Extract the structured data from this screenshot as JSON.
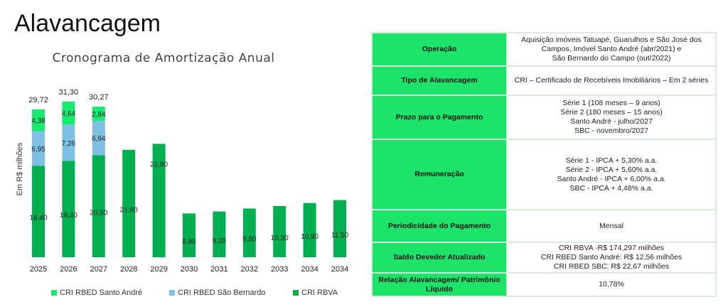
{
  "title": "Alavancagem",
  "chart_data": {
    "type": "bar",
    "stacked": true,
    "title": "Cronograma de Amortização Anual",
    "ylabel": "Em R$ milhões",
    "xlabel": "",
    "categories": [
      "2025",
      "2026",
      "2027",
      "2028",
      "2029",
      "2030",
      "2031",
      "2032",
      "2033",
      "2034",
      "2034"
    ],
    "series": [
      {
        "name": "CRI RBVA",
        "color": "#00b050",
        "values": [
          18.4,
          19.4,
          20.5,
          21.6,
          22.8,
          8.8,
          9.2,
          9.8,
          10.3,
          10.9,
          11.5
        ],
        "labels": [
          "18,40",
          "19,40",
          "20,50",
          "21,60",
          "22,80",
          "8,80",
          "9,20",
          "9,80",
          "10,30",
          "10,90",
          "11,50"
        ]
      },
      {
        "name": "CRI RBED São Bernardo",
        "color": "#7cc0e4",
        "values": [
          6.95,
          7.26,
          6.94,
          0,
          0,
          0,
          0,
          0,
          0,
          0,
          0
        ],
        "labels": [
          "6,95",
          "7,26",
          "6,94",
          "",
          "",
          "",
          "",
          "",
          "",
          "",
          ""
        ]
      },
      {
        "name": "CRI RBED Santo André",
        "color": "#17ea6e",
        "values": [
          4.38,
          4.64,
          2.84,
          0,
          0,
          0,
          0,
          0,
          0,
          0,
          0
        ],
        "labels": [
          "4,38",
          "4,64",
          "2,84",
          "",
          "",
          "",
          "",
          "",
          "",
          "",
          ""
        ]
      }
    ],
    "totals": [
      "29,72",
      "31,30",
      "30,27",
      "",
      "",
      "",
      "",
      "",
      "",
      "",
      ""
    ],
    "legend": [
      "CRI RBED Santo André",
      "CRI RBED São Bernardo",
      "CRI RBVA"
    ],
    "legend_placement": "bottom",
    "grid": false
  },
  "table": {
    "rows": [
      {
        "key": "Operação",
        "value": [
          "Aquisição imóveis Tatuapé, Guarulhos e São José dos",
          "Campos, Imóvel Santo André (abr/2021) e",
          "São Bernardo do Campo (out/2022)"
        ]
      },
      {
        "key": "Tipo de Alavancagem",
        "value": [
          "CRI – Certificado de Recebíveis Imobiliários – Em 2 séries"
        ]
      },
      {
        "key": "Prazo para o Pagamento",
        "value": [
          "Série 1 (108 meses – 9 anos)",
          "Série 2 (180 meses – 15 anos)",
          "Santo André - julho/2027",
          "SBC - novembro/2027"
        ]
      },
      {
        "key": "Remuneração",
        "value": [
          "Série 1 - IPCA + 5,30% a.a.",
          "Série 2 - IPCA + 5,60% a.a.",
          "Santo André - IPCA + 6,00% a.a.",
          "SBC - IPCA + 4,48% a.a."
        ]
      },
      {
        "key": "Periodicidade do Pagamento",
        "value": [
          "Mensal"
        ]
      },
      {
        "key": "Saldo Devedor Atualizado",
        "value": [
          "CRI RBVA -R$ 174,297 milhões",
          "CRI RBED Santo André: R$ 12,56 milhões",
          "CRI RBED SBC: R$ 22,67 milhões"
        ]
      },
      {
        "key": "Relação Alavancagem/ Patrimônio Líquido",
        "value": [
          "10,78%"
        ]
      }
    ]
  }
}
